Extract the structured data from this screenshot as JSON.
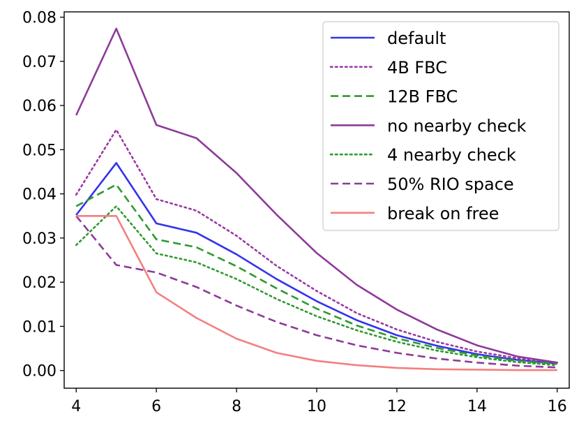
{
  "chart_data": {
    "type": "line",
    "title": "",
    "xlabel": "",
    "ylabel": "",
    "xlim": [
      3.7,
      16.3
    ],
    "ylim": [
      -0.004,
      0.0812
    ],
    "grid": false,
    "legend_position": "top-right",
    "x": [
      4,
      5,
      6,
      7,
      8,
      9,
      10,
      11,
      12,
      13,
      14,
      15,
      16
    ],
    "x_ticks": [
      4,
      6,
      8,
      10,
      12,
      14,
      16
    ],
    "y_ticks": [
      0.0,
      0.01,
      0.02,
      0.03,
      0.04,
      0.05,
      0.06,
      0.07,
      0.08
    ],
    "x_tick_labels": [
      "4",
      "6",
      "8",
      "10",
      "12",
      "14",
      "16"
    ],
    "y_tick_labels": [
      "0.00",
      "0.01",
      "0.02",
      "0.03",
      "0.04",
      "0.05",
      "0.06",
      "0.07",
      "0.08"
    ],
    "series": [
      {
        "name": "default",
        "color": "#3333ee",
        "style": "solid",
        "values": [
          0.0352,
          0.047,
          0.0333,
          0.0312,
          0.0263,
          0.0207,
          0.0157,
          0.0114,
          0.008,
          0.0056,
          0.0037,
          0.0024,
          0.0016
        ]
      },
      {
        "name": "4B FBC",
        "color": "#9b38a6",
        "style": "dotted",
        "values": [
          0.0398,
          0.0545,
          0.0388,
          0.0362,
          0.0305,
          0.0237,
          0.018,
          0.013,
          0.0093,
          0.0065,
          0.0043,
          0.0028,
          0.0018
        ]
      },
      {
        "name": "12B FBC",
        "color": "#2e9a2e",
        "style": "dashed",
        "values": [
          0.0372,
          0.0421,
          0.0297,
          0.0279,
          0.0236,
          0.0186,
          0.014,
          0.0102,
          0.0073,
          0.0051,
          0.0034,
          0.0022,
          0.0015
        ]
      },
      {
        "name": "no nearby check",
        "color": "#8e3a99",
        "style": "solid",
        "values": [
          0.0578,
          0.0774,
          0.0556,
          0.0526,
          0.0447,
          0.0353,
          0.0266,
          0.0194,
          0.0138,
          0.0093,
          0.0057,
          0.0032,
          0.0018
        ]
      },
      {
        "name": "4 nearby check",
        "color": "#2e9a2e",
        "style": "dotted",
        "values": [
          0.0284,
          0.0372,
          0.0265,
          0.0245,
          0.0207,
          0.0162,
          0.0123,
          0.0091,
          0.0065,
          0.0045,
          0.003,
          0.0019,
          0.0012
        ]
      },
      {
        "name": "50% RIO space",
        "color": "#8e3a99",
        "style": "dashed",
        "values": [
          0.035,
          0.0239,
          0.0222,
          0.0189,
          0.0147,
          0.011,
          0.008,
          0.0057,
          0.004,
          0.0027,
          0.0018,
          0.0011,
          0.0007
        ]
      },
      {
        "name": "break on free",
        "color": "#f47f7f",
        "style": "solid",
        "values": [
          0.035,
          0.035,
          0.0177,
          0.0119,
          0.0072,
          0.004,
          0.0022,
          0.0012,
          0.0006,
          0.0003,
          0.0002,
          0.0001,
          0.0001
        ]
      }
    ]
  }
}
